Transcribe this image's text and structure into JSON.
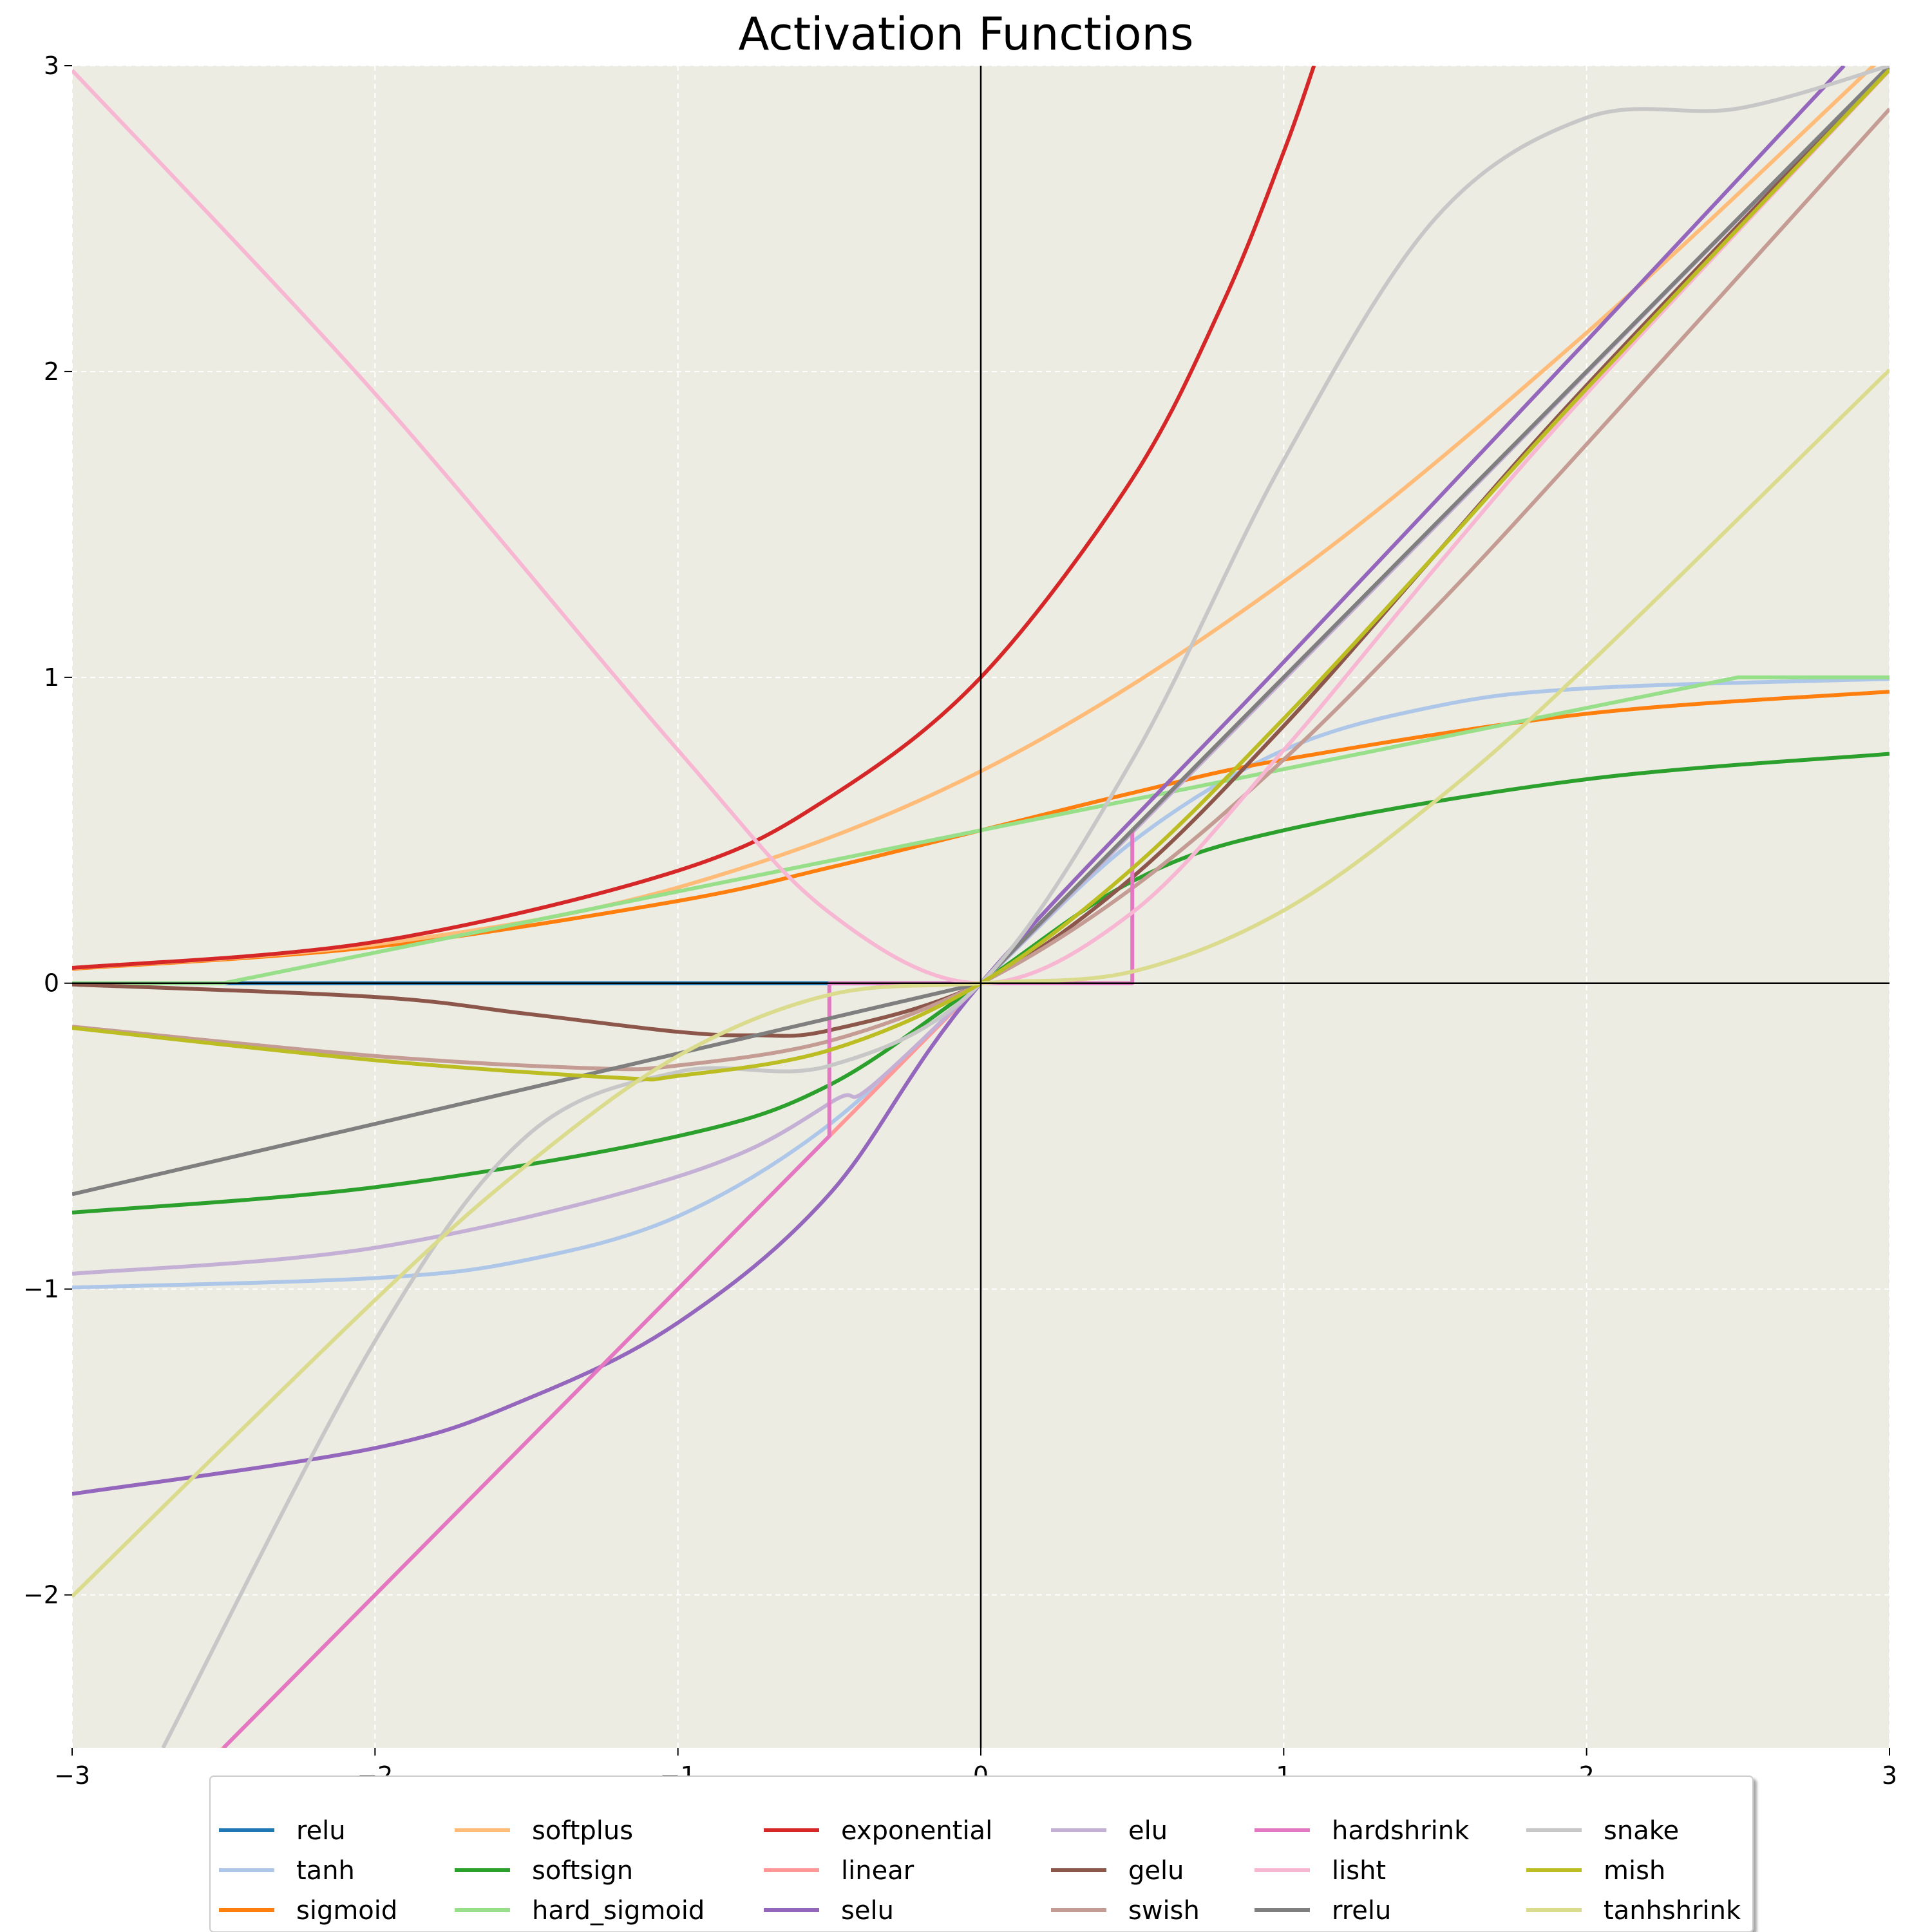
{
  "chart_data": {
    "type": "line",
    "title": "Activation Functions",
    "xlabel": "",
    "ylabel": "",
    "xlim": [
      -3,
      3
    ],
    "ylim": [
      -2.5,
      3
    ],
    "xticks": [
      -3,
      -2,
      -1,
      0,
      1,
      2,
      3
    ],
    "xtick_labels": [
      "−3",
      "−2",
      "−1",
      "0",
      "1",
      "2",
      "3"
    ],
    "yticks": [
      -2,
      -1,
      0,
      1,
      2,
      3
    ],
    "ytick_labels": [
      "−2",
      "−1",
      "0",
      "1",
      "2",
      "3"
    ],
    "grid": true,
    "background": "#ecece3",
    "legend_position": "bottom-center",
    "legend_columns": 6,
    "series": [
      {
        "name": "relu",
        "color": "#1f77b4",
        "x": [
          -3,
          0,
          3
        ],
        "y": [
          0,
          0,
          3
        ]
      },
      {
        "name": "tanh",
        "color": "#aec7e8",
        "x": [
          -3,
          -2,
          -1.5,
          -1,
          -0.5,
          0,
          0.5,
          1,
          1.5,
          2,
          3
        ],
        "y": [
          -0.995,
          -0.964,
          -0.905,
          -0.762,
          -0.462,
          0,
          0.462,
          0.762,
          0.905,
          0.964,
          0.995
        ]
      },
      {
        "name": "sigmoid",
        "color": "#ff7f0e",
        "x": [
          -3,
          -2,
          -1,
          -0.5,
          0,
          0.5,
          1,
          2,
          3
        ],
        "y": [
          0.047,
          0.119,
          0.269,
          0.378,
          0.5,
          0.622,
          0.731,
          0.881,
          0.953
        ]
      },
      {
        "name": "softplus",
        "color": "#ffbb78",
        "x": [
          -3,
          -2,
          -1,
          0,
          1,
          2,
          3
        ],
        "y": [
          0.049,
          0.127,
          0.313,
          0.693,
          1.313,
          2.127,
          3.049
        ]
      },
      {
        "name": "softsign",
        "color": "#2ca02c",
        "x": [
          -3,
          -2,
          -1,
          -0.5,
          0,
          0.5,
          1,
          2,
          3
        ],
        "y": [
          -0.75,
          -0.667,
          -0.5,
          -0.333,
          0,
          0.333,
          0.5,
          0.667,
          0.75
        ]
      },
      {
        "name": "hard_sigmoid",
        "color": "#98df8a",
        "x": [
          -3,
          -2.5,
          0,
          2.5,
          3
        ],
        "y": [
          0,
          0,
          0.5,
          1,
          1
        ]
      },
      {
        "name": "exponential",
        "color": "#d62728",
        "x": [
          -3,
          -2,
          -1,
          -0.5,
          0,
          0.5,
          0.8,
          1,
          1.1
        ],
        "y": [
          0.05,
          0.135,
          0.368,
          0.607,
          1,
          1.649,
          2.226,
          2.718,
          3
        ]
      },
      {
        "name": "linear",
        "color": "#ff9896",
        "x": [
          -3,
          3
        ],
        "y": [
          -3,
          3
        ]
      },
      {
        "name": "selu",
        "color": "#9467bd",
        "x": [
          -3,
          -2,
          -1.5,
          -1,
          -0.5,
          0,
          1,
          2,
          2.85
        ],
        "y": [
          -1.67,
          -1.52,
          -1.36,
          -1.11,
          -0.69,
          0,
          1.05,
          2.1,
          3
        ]
      },
      {
        "name": "elu",
        "color": "#c5b0d5",
        "x": [
          -3,
          -2,
          -1,
          -0.5,
          0,
          3
        ],
        "y": [
          -0.95,
          -0.865,
          -0.632,
          -0.393,
          0,
          3
        ]
      },
      {
        "name": "gelu",
        "color": "#8c564b",
        "x": [
          -3,
          -2,
          -1.5,
          -1,
          -0.75,
          -0.5,
          0,
          0.5,
          1,
          1.5,
          2,
          3
        ],
        "y": [
          -0.004,
          -0.045,
          -0.1,
          -0.159,
          -0.17,
          -0.154,
          0,
          0.346,
          0.841,
          1.4,
          1.955,
          2.996
        ]
      },
      {
        "name": "swish",
        "color": "#c49c94",
        "x": [
          -3,
          -2,
          -1.28,
          -1,
          -0.5,
          0,
          0.5,
          1,
          1.5,
          2,
          3
        ],
        "y": [
          -0.142,
          -0.238,
          -0.278,
          -0.269,
          -0.189,
          0,
          0.311,
          0.731,
          1.227,
          1.762,
          2.858
        ]
      },
      {
        "name": "hardshrink",
        "color": "#e377c2",
        "x": [
          -2.5,
          -0.5,
          -0.5,
          0.5,
          0.5,
          1.15
        ],
        "y": [
          -2.5,
          -0.5,
          0,
          0,
          0.5,
          1.15
        ]
      },
      {
        "name": "lisht",
        "color": "#f7b6d2",
        "x": [
          -3,
          -2,
          -1,
          -0.5,
          0,
          0.5,
          1,
          1.5,
          2,
          3
        ],
        "y": [
          2.985,
          1.928,
          0.762,
          0.231,
          0,
          0.231,
          0.762,
          1.357,
          1.928,
          2.985
        ]
      },
      {
        "name": "rrelu",
        "color": "#7f7f7f",
        "x": [
          -3,
          0,
          3
        ],
        "y": [
          -0.69,
          0,
          3
        ]
      },
      {
        "name": "snake",
        "color": "#c7c7c7",
        "x": [
          -2.7,
          -2,
          -1.5,
          -1,
          -0.5,
          0,
          0.5,
          1,
          1.5,
          2,
          2.5,
          3
        ],
        "y": [
          -2.5,
          -1.17,
          -0.5,
          -0.29,
          -0.27,
          0,
          0.73,
          1.71,
          2.5,
          2.83,
          2.86,
          3
        ]
      },
      {
        "name": "mish",
        "color": "#bcbd22",
        "x": [
          -3,
          -2,
          -1.2,
          -1,
          -0.5,
          0,
          0.5,
          1,
          1.5,
          2,
          3
        ],
        "y": [
          -0.146,
          -0.252,
          -0.309,
          -0.303,
          -0.219,
          0,
          0.375,
          0.865,
          1.4,
          1.944,
          2.987
        ]
      },
      {
        "name": "tanhshrink",
        "color": "#dbdb8d",
        "x": [
          -3,
          -2,
          -1.5,
          -1,
          -0.5,
          0,
          0.5,
          1,
          1.5,
          2,
          3
        ],
        "y": [
          -2.005,
          -1.036,
          -0.595,
          -0.238,
          -0.038,
          0,
          0.038,
          0.238,
          0.595,
          1.036,
          2.005
        ]
      }
    ]
  }
}
